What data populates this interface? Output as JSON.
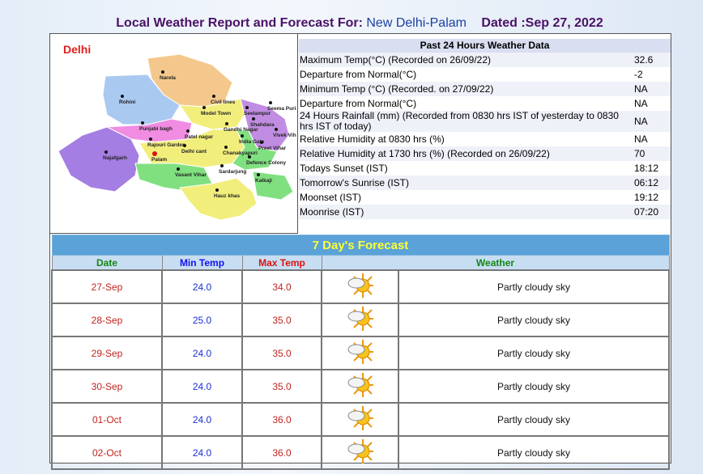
{
  "header": {
    "title": "Local Weather Report and Forecast For:",
    "station": "New Delhi-Palam",
    "dated": "Dated :Sep 27, 2022"
  },
  "map": {
    "title": "Delhi",
    "places": [
      "Narela",
      "Rohini",
      "Civil lines",
      "Seema Puri",
      "Model Town",
      "Seelampur",
      "Shahdara",
      "Punjabi bagh",
      "Patel nagar",
      "Gandhi Nagar",
      "Vivek Vihar",
      "Rajouri Garden",
      "India Gate",
      "Preet Vihar",
      "Najafgarh",
      "Delhi cant",
      "Chanakyapuri",
      "Palam",
      "Defence Colony",
      "Vasant Vihar",
      "Sardarjung",
      "Kalkaji",
      "Hauz khas"
    ]
  },
  "past24": {
    "title": "Past 24 Hours Weather Data",
    "rows": [
      [
        "Maximum Temp(°C) (Recorded on 26/09/22)",
        "32.6"
      ],
      [
        "Departure from Normal(°C)",
        "-2"
      ],
      [
        "Minimum Temp (°C) (Recorded. on 27/09/22)",
        "NA"
      ],
      [
        "Departure from Normal(°C)",
        "NA"
      ],
      [
        "24 Hours Rainfall (mm) (Recorded from 0830 hrs IST of yesterday to 0830 hrs IST of today)",
        "NA"
      ],
      [
        "Relative Humidity at 0830 hrs (%)",
        "NA"
      ],
      [
        "Relative Humidity at 1730 hrs (%) (Recorded on 26/09/22)",
        "70"
      ],
      [
        "Todays Sunset (IST)",
        "18:12"
      ],
      [
        "Tomorrow's Sunrise (IST)",
        "06:12"
      ],
      [
        "Moonset (IST)",
        "19:12"
      ],
      [
        "Moonrise (IST)",
        "07:20"
      ]
    ]
  },
  "forecast": {
    "title": "7 Day's Forecast",
    "headers": [
      "Date",
      "Min Temp",
      "Max Temp",
      "Weather"
    ],
    "rows": [
      [
        "27-Sep",
        "24.0",
        "34.0",
        "Partly cloudy sky"
      ],
      [
        "28-Sep",
        "25.0",
        "35.0",
        "Partly cloudy sky"
      ],
      [
        "29-Sep",
        "24.0",
        "35.0",
        "Partly cloudy sky"
      ],
      [
        "30-Sep",
        "24.0",
        "35.0",
        "Partly cloudy sky"
      ],
      [
        "01-Oct",
        "24.0",
        "36.0",
        "Partly cloudy sky"
      ],
      [
        "02-Oct",
        "24.0",
        "36.0",
        "Partly cloudy sky"
      ]
    ]
  }
}
